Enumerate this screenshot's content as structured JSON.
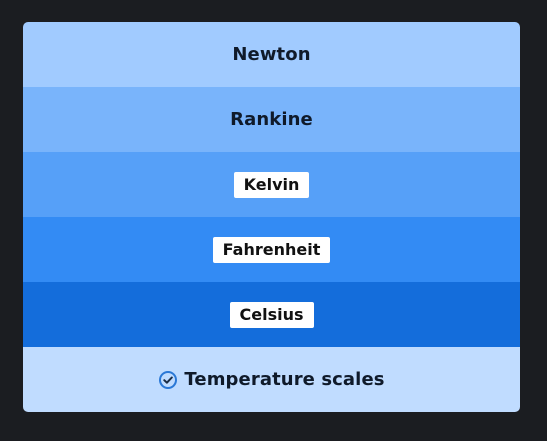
{
  "scales": [
    {
      "label": "Newton",
      "style": "plain",
      "color": "#a1cbff"
    },
    {
      "label": "Rankine",
      "style": "plain",
      "color": "#79b4fb"
    },
    {
      "label": "Kelvin",
      "style": "chip",
      "color": "#56a0f8"
    },
    {
      "label": "Fahrenheit",
      "style": "chip",
      "color": "#338bf4"
    },
    {
      "label": "Celsius",
      "style": "chip",
      "color": "#146ddb"
    }
  ],
  "footer": {
    "label": "Temperature scales",
    "icon": "check-circle-icon",
    "color": "#c0dcff"
  }
}
